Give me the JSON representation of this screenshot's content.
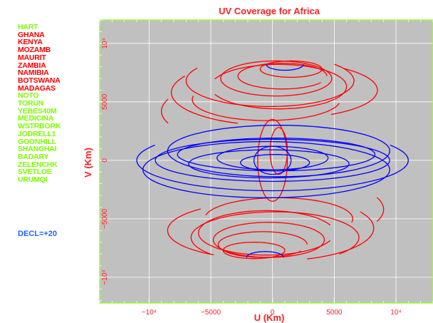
{
  "colors": {
    "background": "#ffffff",
    "plot_bg": "#c0c0c0",
    "grid": "#ffffff",
    "frame": "#99ff33",
    "axis_text": "#ff2020",
    "tick_text": "#ff2020",
    "series_red": "#ff0000",
    "series_blue": "#0000ff",
    "legend_green": "#7cfc00",
    "legend_red": "#ff0000",
    "decl_blue": "#1e64ff"
  },
  "legend": {
    "stations": [
      {
        "name": "HART",
        "group": "green"
      },
      {
        "name": "GHANA",
        "group": "red"
      },
      {
        "name": "KENYA",
        "group": "red"
      },
      {
        "name": "MOZAMB",
        "group": "red"
      },
      {
        "name": "MAURIT",
        "group": "red"
      },
      {
        "name": "ZAMBIA",
        "group": "red"
      },
      {
        "name": "NAMIBIA",
        "group": "red"
      },
      {
        "name": "BOTSWANA",
        "group": "red"
      },
      {
        "name": "MADAGAS",
        "group": "red"
      },
      {
        "name": "NOTO",
        "group": "green"
      },
      {
        "name": "TORUN",
        "group": "green"
      },
      {
        "name": "YEBES40M",
        "group": "green"
      },
      {
        "name": "MEDICINA",
        "group": "green"
      },
      {
        "name": "WSTRBORK",
        "group": "green"
      },
      {
        "name": "JODRELL1",
        "group": "green"
      },
      {
        "name": "GOONHILL",
        "group": "green"
      },
      {
        "name": "SHANGHAI",
        "group": "green"
      },
      {
        "name": "BADARY",
        "group": "green"
      },
      {
        "name": "ZELENCHK",
        "group": "green"
      },
      {
        "name": "SVETLOE",
        "group": "green"
      },
      {
        "name": "URUMQI",
        "group": "green"
      }
    ],
    "declination": "DECL=+20"
  },
  "chart_data": {
    "type": "scatter",
    "title": "UV Coverage for Africa",
    "xlabel": "U (Km)",
    "ylabel": "V (Km)",
    "xlim": [
      -14000,
      13000
    ],
    "ylim": [
      -12200,
      12000
    ],
    "x_ticks": [
      {
        "value": -10000,
        "label": "−10⁴"
      },
      {
        "value": -5000,
        "label": "−5000"
      },
      {
        "value": 0,
        "label": "0"
      },
      {
        "value": 5000,
        "label": "5000"
      },
      {
        "value": 10000,
        "label": "10⁴"
      }
    ],
    "y_ticks": [
      {
        "value": -10000,
        "label": "−10⁴"
      },
      {
        "value": -5000,
        "label": "−5000"
      },
      {
        "value": 0,
        "label": "0"
      },
      {
        "value": 5000,
        "label": "5000"
      },
      {
        "value": 10000,
        "label": "10⁴"
      }
    ],
    "grid": true,
    "series": [
      {
        "color_key": "series_red",
        "tracks": [
          {
            "center": [
              300,
              7000
            ],
            "radius": [
              4500,
              1500
            ],
            "arc": [
              0,
              360
            ]
          },
          {
            "center": [
              500,
              6300
            ],
            "radius": [
              5500,
              1900
            ],
            "arc": [
              200,
              520
            ]
          },
          {
            "center": [
              -200,
              6800
            ],
            "radius": [
              6800,
              2200
            ],
            "arc": [
              150,
              400
            ]
          },
          {
            "center": [
              800,
              7200
            ],
            "radius": [
              3600,
              1100
            ],
            "arc": [
              0,
              330
            ]
          },
          {
            "center": [
              0,
              5800
            ],
            "radius": [
              8200,
              2800
            ],
            "arc": [
              150,
              250
            ]
          },
          {
            "center": [
              1000,
              6000
            ],
            "radius": [
              7500,
              2400
            ],
            "arc": [
              300,
              410
            ]
          },
          {
            "center": [
              -500,
              5200
            ],
            "radius": [
              6000,
              1800
            ],
            "arc": [
              170,
              350
            ]
          },
          {
            "center": [
              1500,
              7800
            ],
            "radius": [
              2500,
              700
            ],
            "arc": [
              0,
              360
            ]
          },
          {
            "center": [
              0,
              4200
            ],
            "radius": [
              9000,
              3000
            ],
            "arc": [
              160,
              200
            ]
          },
          {
            "center": [
              -300,
              -6800
            ],
            "radius": [
              4500,
              1500
            ],
            "arc": [
              0,
              360
            ]
          },
          {
            "center": [
              -500,
              -6200
            ],
            "radius": [
              5500,
              1900
            ],
            "arc": [
              20,
              340
            ]
          },
          {
            "center": [
              200,
              -6600
            ],
            "radius": [
              6800,
              2200
            ],
            "arc": [
              -40,
              220
            ]
          },
          {
            "center": [
              -800,
              -7200
            ],
            "radius": [
              3600,
              1100
            ],
            "arc": [
              0,
              330
            ]
          },
          {
            "center": [
              0,
              -5800
            ],
            "radius": [
              8200,
              2800
            ],
            "arc": [
              -70,
              30
            ]
          },
          {
            "center": [
              -1000,
              -6000
            ],
            "radius": [
              7500,
              2400
            ],
            "arc": [
              130,
              240
            ]
          },
          {
            "center": [
              500,
              -5000
            ],
            "radius": [
              6000,
              1800
            ],
            "arc": [
              -10,
              170
            ]
          },
          {
            "center": [
              -1500,
              -7700
            ],
            "radius": [
              2500,
              700
            ],
            "arc": [
              0,
              360
            ]
          },
          {
            "center": [
              0,
              -4200
            ],
            "radius": [
              9000,
              3000
            ],
            "arc": [
              -20,
              20
            ]
          },
          {
            "center": [
              0,
              0
            ],
            "radius": [
              1200,
              3500
            ],
            "arc": [
              0,
              360
            ]
          },
          {
            "center": [
              500,
              800
            ],
            "radius": [
              700,
              2000
            ],
            "arc": [
              0,
              360
            ]
          }
        ]
      },
      {
        "color_key": "series_blue",
        "tracks": [
          {
            "center": [
              0,
              0
            ],
            "radius": [
              9500,
              1800
            ],
            "arc": [
              0,
              360
            ]
          },
          {
            "center": [
              300,
              500
            ],
            "radius": [
              8000,
              1400
            ],
            "arc": [
              0,
              360
            ]
          },
          {
            "center": [
              -300,
              -300
            ],
            "radius": [
              6500,
              1200
            ],
            "arc": [
              0,
              360
            ]
          },
          {
            "center": [
              0,
              200
            ],
            "radius": [
              4500,
              1000
            ],
            "arc": [
              0,
              360
            ]
          },
          {
            "center": [
              200,
              -200
            ],
            "radius": [
              2800,
              700
            ],
            "arc": [
              0,
              360
            ]
          },
          {
            "center": [
              0,
              0
            ],
            "radius": [
              11000,
              2600
            ],
            "arc": [
              150,
              390
            ]
          },
          {
            "center": [
              500,
              800
            ],
            "radius": [
              9000,
              2200
            ],
            "arc": [
              0,
              360
            ]
          },
          {
            "center": [
              -500,
              -800
            ],
            "radius": [
              10000,
              2400
            ],
            "arc": [
              0,
              360
            ]
          },
          {
            "center": [
              0,
              0
            ],
            "radius": [
              1500,
              1200
            ],
            "arc": [
              0,
              360
            ]
          },
          {
            "center": [
              1000,
              8200
            ],
            "radius": [
              1500,
              500
            ],
            "arc": [
              180,
              360
            ]
          },
          {
            "center": [
              -600,
              -8300
            ],
            "radius": [
              1500,
              500
            ],
            "arc": [
              0,
              180
            ]
          }
        ]
      }
    ]
  }
}
